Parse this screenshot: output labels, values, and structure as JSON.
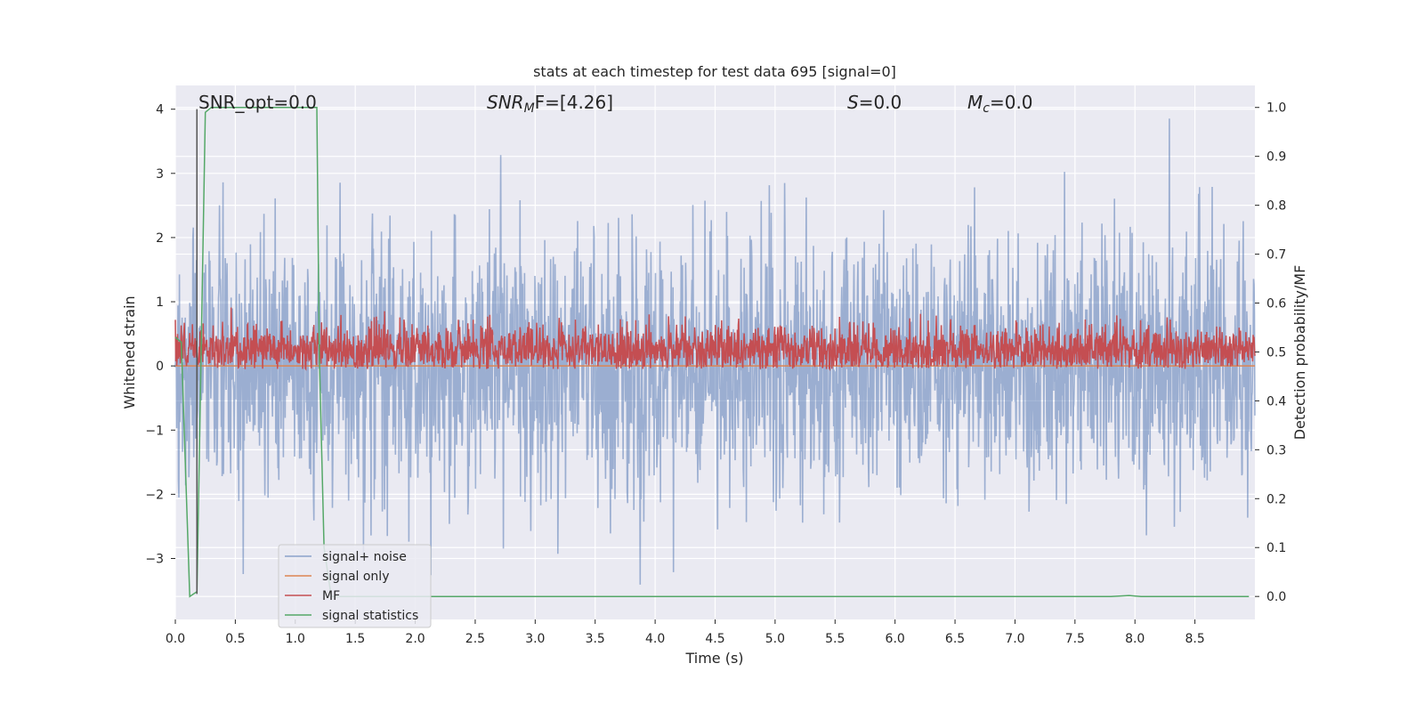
{
  "chart_data": {
    "type": "line",
    "title": "stats at each timestep for test data 695 [signal=0]",
    "xlabel": "Time (s)",
    "ylabel": "Whitened strain",
    "ylabel_right": "Detection probability/MF",
    "xlim": [
      0,
      9.0
    ],
    "ylim": [
      -3.95,
      4.37
    ],
    "ylim_right": [
      -0.047,
      1.045
    ],
    "x_ticks": [
      0.0,
      0.5,
      1.0,
      1.5,
      2.0,
      2.5,
      3.0,
      3.5,
      4.0,
      4.5,
      5.0,
      5.5,
      6.0,
      6.5,
      7.0,
      7.5,
      8.0,
      8.5
    ],
    "x_tick_labels": [
      "0.0",
      "0.5",
      "1.0",
      "1.5",
      "2.0",
      "2.5",
      "3.0",
      "3.5",
      "4.0",
      "4.5",
      "5.0",
      "5.5",
      "6.0",
      "6.5",
      "7.0",
      "7.5",
      "8.0",
      "8.5"
    ],
    "y_ticks": [
      4,
      3,
      2,
      1,
      0,
      -1,
      -2,
      -3
    ],
    "y_tick_labels": [
      "4",
      "3",
      "2",
      "1",
      "0",
      "−1",
      "−2",
      "−3"
    ],
    "y_right_ticks": [
      1.0,
      0.9,
      0.8,
      0.7,
      0.6,
      0.5,
      0.4,
      0.3,
      0.2,
      0.1,
      0.0
    ],
    "y_right_tick_labels": [
      "1.0",
      "0.9",
      "0.8",
      "0.7",
      "0.6",
      "0.5",
      "0.4",
      "0.3",
      "0.2",
      "0.1",
      "0.0"
    ],
    "grid": true,
    "legend_position": "lower-left",
    "annotations": [
      {
        "text": "SNR_opt=0.0"
      },
      {
        "text": "SNR",
        "sub": "M",
        "suffix": "F=[4.26]"
      },
      {
        "text": "S",
        "suffix": "=0.0"
      },
      {
        "text": "M",
        "sub": "c",
        "suffix": "=0.0"
      }
    ],
    "series": [
      {
        "name": "signal+ noise",
        "color": "#4c72b0",
        "axis": "left",
        "noise": {
          "samples": 2400,
          "sigma": 1.0,
          "max": 4.0,
          "min": -3.6
        }
      },
      {
        "name": "signal only",
        "color": "#dd8452",
        "axis": "left",
        "x": [
          0,
          9.0
        ],
        "y": [
          0,
          0
        ]
      },
      {
        "name": "MF",
        "color": "#c44e52",
        "axis": "left",
        "noise": {
          "samples": 2400,
          "center": 0.25,
          "sigma": 0.2,
          "max": 0.97,
          "min": -0.05
        }
      },
      {
        "name": "signal statistics",
        "color": "#55a868",
        "axis": "right",
        "x": [
          0,
          0.05,
          0.12,
          0.18,
          0.25,
          0.3,
          0.6,
          1.0,
          1.18,
          1.2,
          1.24,
          1.3,
          1.5,
          2.0,
          7.8,
          7.95,
          8.05,
          8.2,
          8.95
        ],
        "y": [
          0.53,
          0.52,
          0.0,
          0.01,
          0.99,
          1.0,
          1.0,
          1.0,
          1.0,
          0.5,
          0.1,
          0.0,
          0.0,
          0.0,
          0.0,
          0.002,
          0.0,
          0.0,
          0.0
        ]
      }
    ],
    "vertical_marker": {
      "x": 0.18,
      "color": "#555555"
    }
  }
}
